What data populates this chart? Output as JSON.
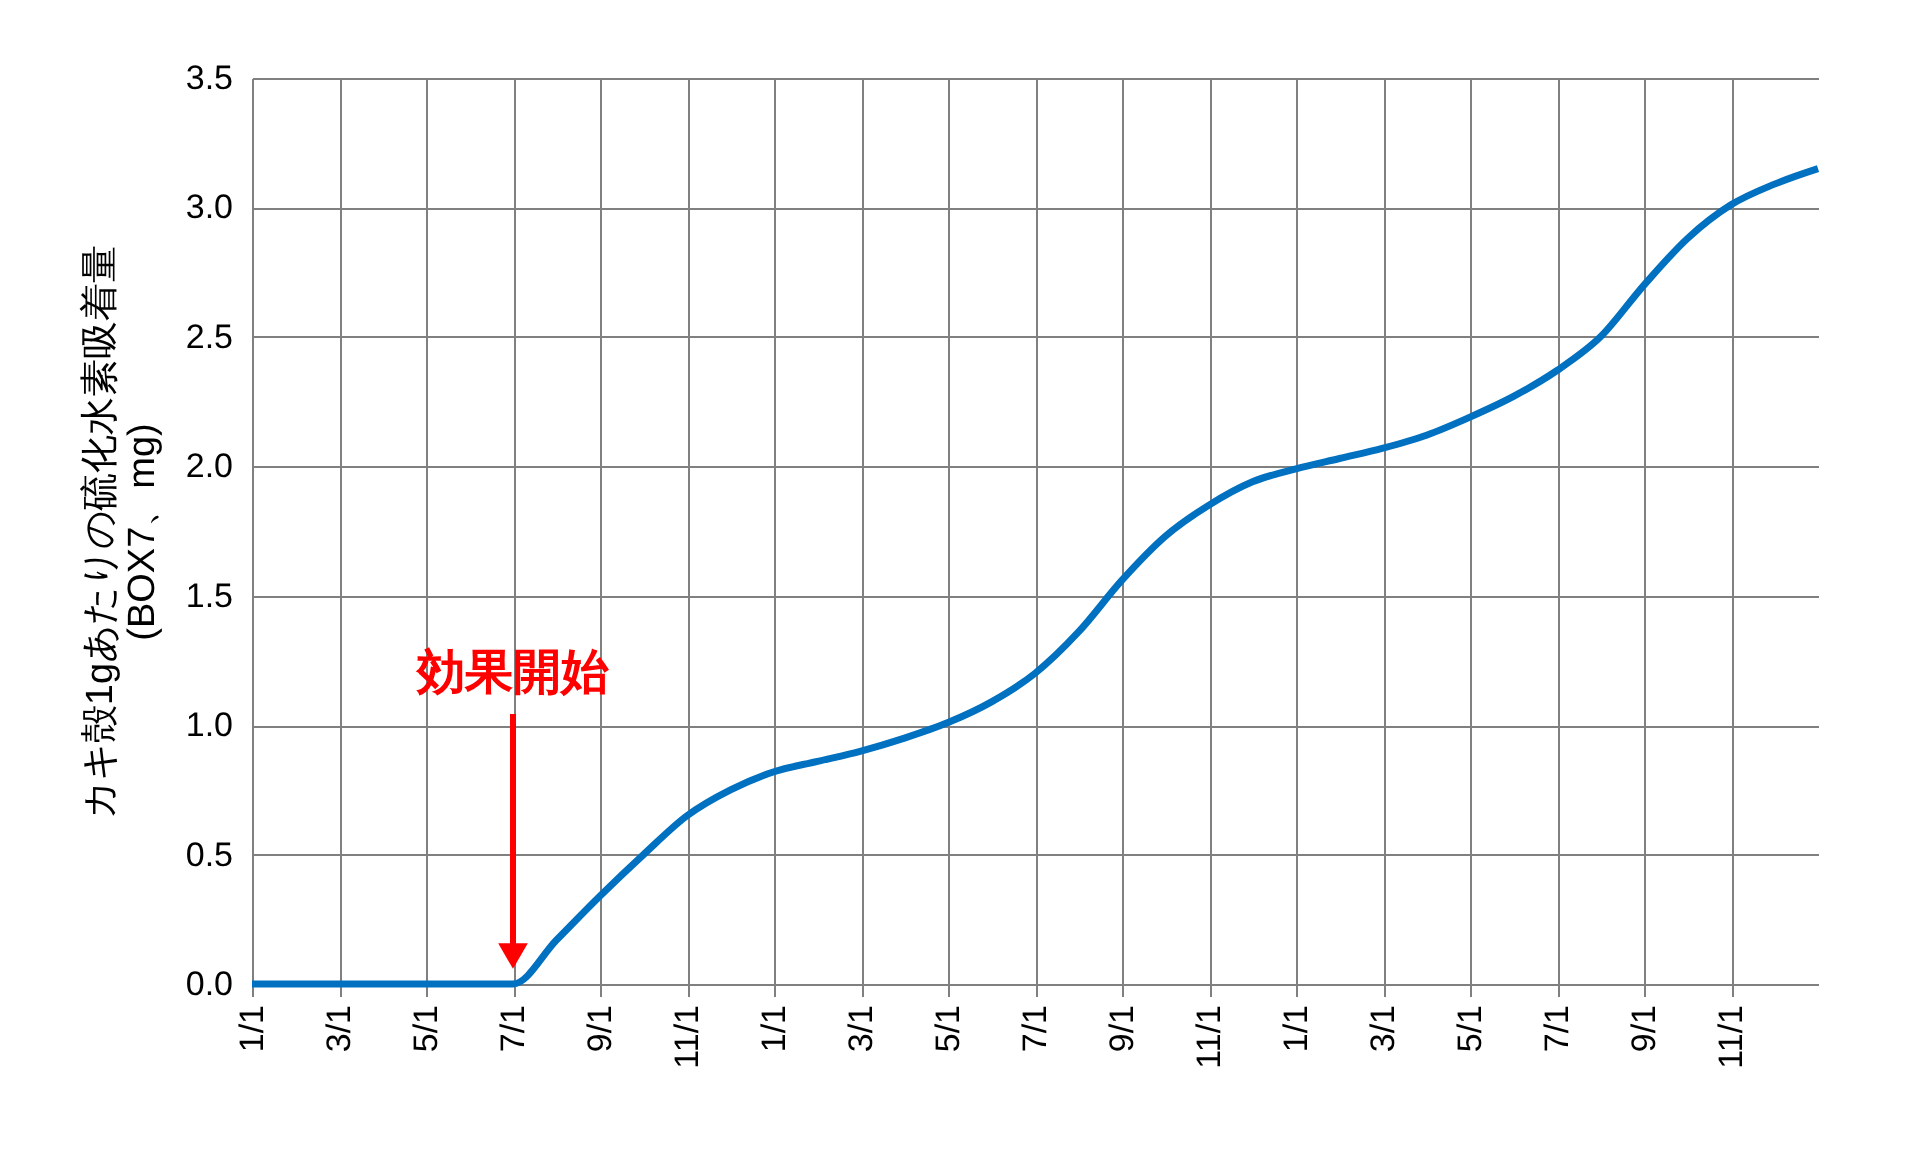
{
  "chart_data": {
    "type": "line",
    "ylabel": "カキ殻1gあたりの硫化水素吸着量\n(BOX7、mg)",
    "categories": [
      "1/1",
      null,
      "3/1",
      null,
      "5/1",
      null,
      "7/1",
      null,
      "9/1",
      null,
      "11/1",
      null,
      "1/1",
      null,
      "3/1",
      null,
      "5/1",
      null,
      "7/1",
      null,
      "9/1",
      null,
      "11/1",
      null,
      "1/1",
      null,
      "3/1",
      null,
      "5/1",
      null,
      "7/1",
      null,
      "9/1",
      null,
      "11/1",
      null,
      null
    ],
    "series": [
      {
        "color": "#0070c0",
        "values": [
          0,
          0,
          0,
          0,
          0,
          0,
          0,
          0.17,
          0.34,
          0.5,
          0.65,
          0.75,
          0.82,
          0.86,
          0.9,
          0.95,
          1.01,
          1.09,
          1.2,
          1.36,
          1.56,
          1.73,
          1.85,
          1.94,
          1.99,
          2.03,
          2.07,
          2.12,
          2.19,
          2.27,
          2.37,
          2.5,
          2.7,
          2.88,
          3.01,
          3.09,
          3.15
        ]
      }
    ],
    "ylim": [
      0,
      3.5
    ],
    "yticks": [
      {
        "value": 0,
        "label": "0.0"
      },
      {
        "value": 0.5,
        "label": "0.5"
      },
      {
        "value": 1,
        "label": "1.0"
      },
      {
        "value": 1.5,
        "label": "1.5"
      },
      {
        "value": 2,
        "label": "2.0"
      },
      {
        "value": 2.5,
        "label": "2.5"
      },
      {
        "value": 3,
        "label": "3.0"
      },
      {
        "value": 3.5,
        "label": "3.5"
      }
    ],
    "grid": true,
    "line_style": "solid",
    "marker": "none",
    "legend": false,
    "annotations": [
      "効果開始"
    ]
  }
}
